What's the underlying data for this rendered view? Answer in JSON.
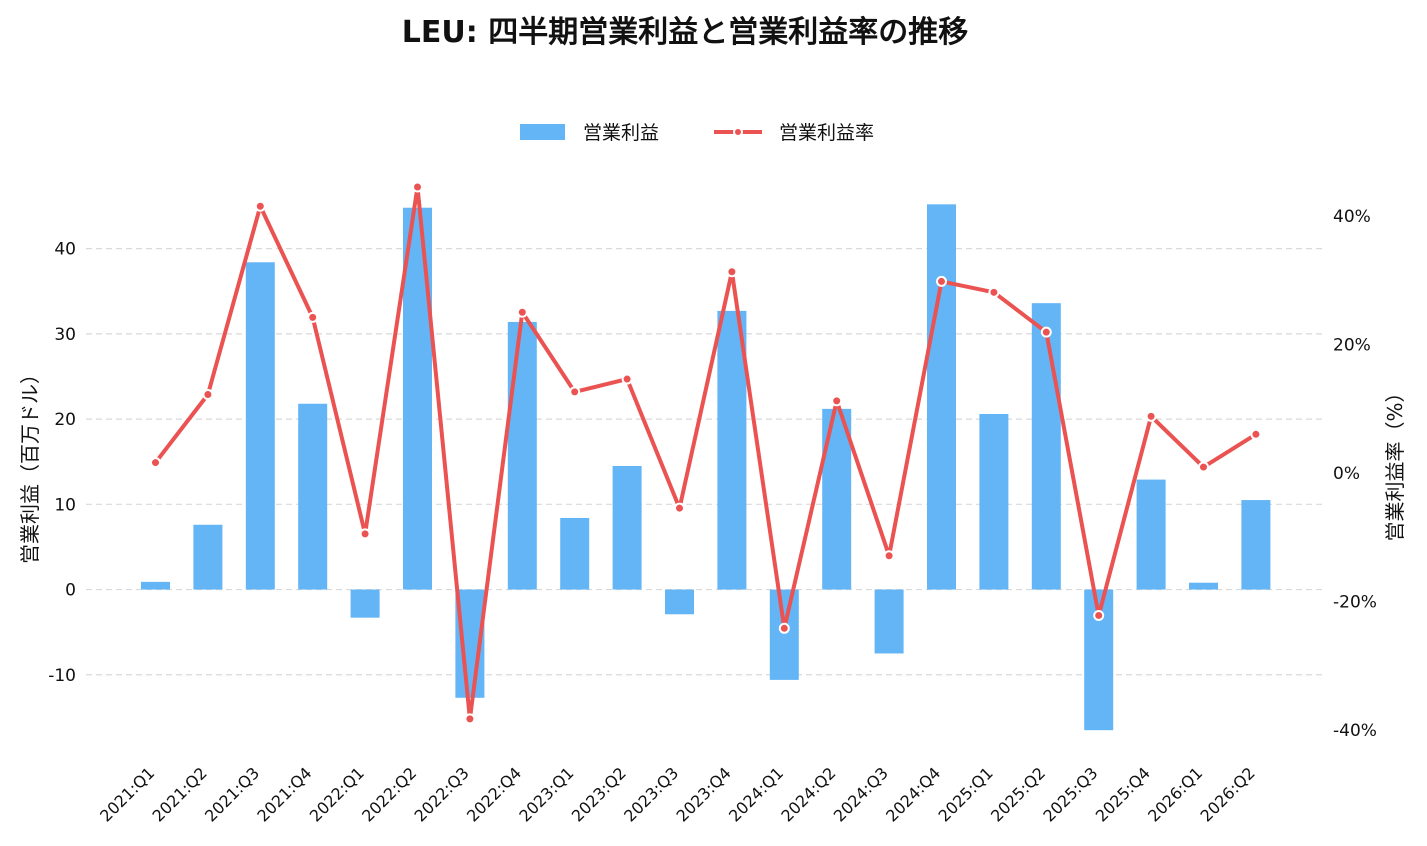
{
  "chart_data": {
    "type": "bar",
    "title": "LEU: 四半期営業利益と営業利益率の推移",
    "categories": [
      "2021:Q1",
      "2021:Q2",
      "2021:Q3",
      "2021:Q4",
      "2022:Q1",
      "2022:Q2",
      "2022:Q3",
      "2022:Q4",
      "2023:Q1",
      "2023:Q2",
      "2023:Q3",
      "2023:Q4",
      "2024:Q1",
      "2024:Q2",
      "2024:Q3",
      "2024:Q4",
      "2025:Q1",
      "2025:Q2",
      "2025:Q3",
      "2025:Q4",
      "2026:Q1",
      "2026:Q2"
    ],
    "series": [
      {
        "name": "営業利益",
        "type": "bar",
        "axis": "left",
        "color": "#64b5f6",
        "values": [
          0.9,
          7.6,
          38.4,
          21.8,
          -3.3,
          44.8,
          -12.7,
          31.4,
          8.4,
          14.5,
          -2.9,
          32.7,
          -10.6,
          21.2,
          -7.5,
          45.2,
          20.6,
          33.6,
          -16.5,
          12.9,
          0.8,
          10.5
        ]
      },
      {
        "name": "営業利益率",
        "type": "line",
        "axis": "right",
        "color": "#ea5351",
        "values": [
          1.6,
          12.2,
          41.5,
          24.2,
          -9.5,
          44.5,
          -38.3,
          25.0,
          12.6,
          14.6,
          -5.5,
          31.3,
          -24.2,
          11.2,
          -12.9,
          29.8,
          28.1,
          21.9,
          -22.2,
          8.8,
          0.9,
          6.0
        ]
      }
    ],
    "y_left": {
      "label": "営業利益（百万ドル）",
      "ticks": [
        -10,
        0,
        10,
        20,
        30,
        40
      ],
      "tick_labels": [
        "-10",
        "0",
        "10",
        "20",
        "30",
        "40"
      ],
      "range": [
        -20.0,
        50.4
      ]
    },
    "y_right": {
      "label": "営業利益率（%）",
      "ticks": [
        -40,
        -20,
        0,
        20,
        40
      ],
      "tick_labels": [
        "-40%",
        "-20%",
        "0%",
        "20%",
        "40%"
      ],
      "range": [
        -44.7,
        48.7
      ]
    },
    "grid": true,
    "legend": "top-center"
  }
}
